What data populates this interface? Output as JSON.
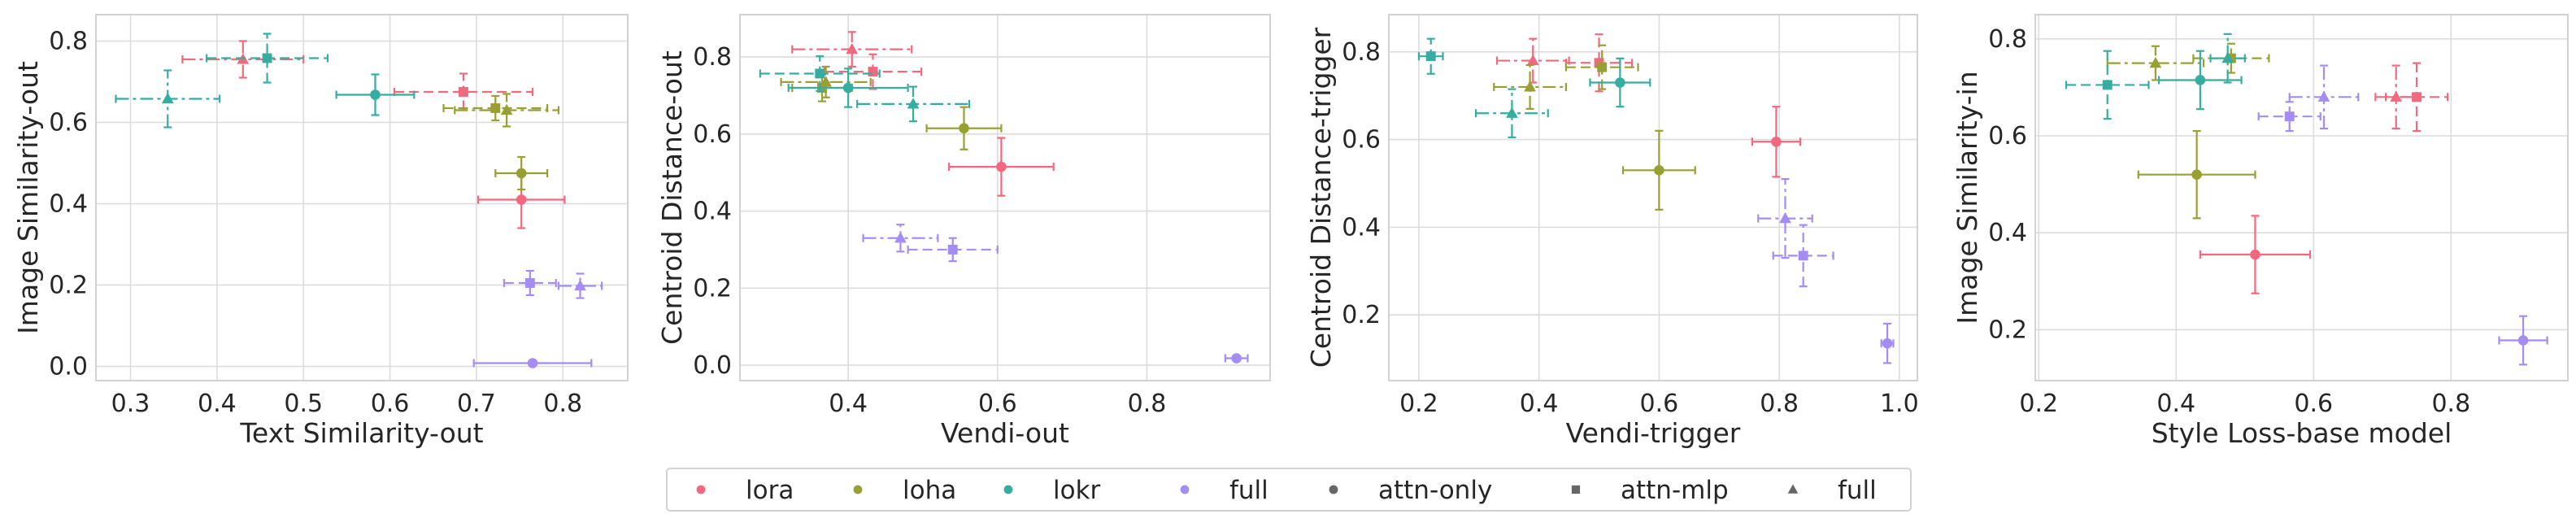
{
  "colors": {
    "lora": "#f0697e",
    "loha": "#98a033",
    "lokr": "#35ada0",
    "full": "#a48cf4",
    "grid": "#dcdcdc",
    "frame": "#d2d2d2",
    "text": "#262626",
    "marker_key": "#666666"
  },
  "legend": {
    "placement": "bottom-center",
    "items": [
      {
        "label": "lora",
        "kind": "color",
        "key": "lora"
      },
      {
        "label": "loha",
        "kind": "color",
        "key": "loha"
      },
      {
        "label": "lokr",
        "kind": "color",
        "key": "lokr"
      },
      {
        "label": "full",
        "kind": "color",
        "key": "full"
      },
      {
        "label": "attn-only",
        "kind": "marker",
        "marker": "circle"
      },
      {
        "label": "attn-mlp",
        "kind": "marker",
        "marker": "square"
      },
      {
        "label": "full",
        "kind": "marker",
        "marker": "triangle"
      }
    ]
  },
  "chart_data": [
    {
      "type": "scatter",
      "xlabel": "Text Similarity-out",
      "ylabel": "Image Similarity-out",
      "xlim": [
        0.26,
        0.875
      ],
      "ylim": [
        -0.035,
        0.865
      ],
      "xticks": [
        0.3,
        0.4,
        0.5,
        0.6,
        0.7,
        0.8
      ],
      "yticks": [
        0.0,
        0.2,
        0.4,
        0.6,
        0.8
      ],
      "xtick_labels": [
        "0.3",
        "0.4",
        "0.5",
        "0.6",
        "0.7",
        "0.8"
      ],
      "ytick_labels": [
        "0.0",
        "0.2",
        "0.4",
        "0.6",
        "0.8"
      ],
      "grid": true,
      "points": [
        {
          "method": "lora",
          "variant": "full",
          "x": 0.43,
          "y": 0.755,
          "xerr": 0.07,
          "yerr": 0.045
        },
        {
          "method": "lora",
          "variant": "attn-mlp",
          "x": 0.685,
          "y": 0.675,
          "xerr": 0.08,
          "yerr": 0.045
        },
        {
          "method": "lora",
          "variant": "attn-only",
          "x": 0.752,
          "y": 0.41,
          "xerr": 0.05,
          "yerr": 0.07
        },
        {
          "method": "loha",
          "variant": "attn-mlp",
          "x": 0.722,
          "y": 0.635,
          "xerr": 0.06,
          "yerr": 0.03
        },
        {
          "method": "loha",
          "variant": "full",
          "x": 0.735,
          "y": 0.63,
          "xerr": 0.06,
          "yerr": 0.04
        },
        {
          "method": "loha",
          "variant": "attn-only",
          "x": 0.752,
          "y": 0.475,
          "xerr": 0.03,
          "yerr": 0.04
        },
        {
          "method": "lokr",
          "variant": "full",
          "x": 0.343,
          "y": 0.658,
          "xerr": 0.06,
          "yerr": 0.07
        },
        {
          "method": "lokr",
          "variant": "attn-mlp",
          "x": 0.458,
          "y": 0.758,
          "xerr": 0.07,
          "yerr": 0.06
        },
        {
          "method": "lokr",
          "variant": "attn-only",
          "x": 0.583,
          "y": 0.668,
          "xerr": 0.045,
          "yerr": 0.05
        },
        {
          "method": "full",
          "variant": "attn-mlp",
          "x": 0.762,
          "y": 0.205,
          "xerr": 0.03,
          "yerr": 0.03
        },
        {
          "method": "full",
          "variant": "full",
          "x": 0.82,
          "y": 0.198,
          "xerr": 0.025,
          "yerr": 0.03
        },
        {
          "method": "full",
          "variant": "attn-only",
          "x": 0.765,
          "y": 0.008,
          "xerr": 0.068,
          "yerr": 0.0
        }
      ]
    },
    {
      "type": "scatter",
      "xlabel": "Vendi-out",
      "ylabel": "Centroid Distance-out",
      "xlim": [
        0.255,
        0.965
      ],
      "ylim": [
        -0.04,
        0.91
      ],
      "xticks": [
        0.4,
        0.6,
        0.8
      ],
      "yticks": [
        0.0,
        0.2,
        0.4,
        0.6,
        0.8
      ],
      "xtick_labels": [
        "0.4",
        "0.6",
        "0.8"
      ],
      "ytick_labels": [
        "0.0",
        "0.2",
        "0.4",
        "0.6",
        "0.8"
      ],
      "grid": true,
      "points": [
        {
          "method": "lora",
          "variant": "full",
          "x": 0.405,
          "y": 0.82,
          "xerr": 0.08,
          "yerr": 0.045
        },
        {
          "method": "lora",
          "variant": "attn-mlp",
          "x": 0.433,
          "y": 0.762,
          "xerr": 0.065,
          "yerr": 0.045
        },
        {
          "method": "lora",
          "variant": "attn-only",
          "x": 0.605,
          "y": 0.515,
          "xerr": 0.07,
          "yerr": 0.075
        },
        {
          "method": "loha",
          "variant": "full",
          "x": 0.37,
          "y": 0.735,
          "xerr": 0.06,
          "yerr": 0.04
        },
        {
          "method": "loha",
          "variant": "attn-only",
          "x": 0.555,
          "y": 0.615,
          "xerr": 0.05,
          "yerr": 0.055
        },
        {
          "method": "loha",
          "variant": "attn-mlp",
          "x": 0.365,
          "y": 0.72,
          "xerr": 0.04,
          "yerr": 0.035
        },
        {
          "method": "lokr",
          "variant": "attn-mlp",
          "x": 0.362,
          "y": 0.757,
          "xerr": 0.08,
          "yerr": 0.045
        },
        {
          "method": "lokr",
          "variant": "attn-only",
          "x": 0.4,
          "y": 0.72,
          "xerr": 0.08,
          "yerr": 0.05
        },
        {
          "method": "lokr",
          "variant": "full",
          "x": 0.487,
          "y": 0.678,
          "xerr": 0.075,
          "yerr": 0.045
        },
        {
          "method": "full",
          "variant": "full",
          "x": 0.47,
          "y": 0.33,
          "xerr": 0.05,
          "yerr": 0.035
        },
        {
          "method": "full",
          "variant": "attn-mlp",
          "x": 0.54,
          "y": 0.3,
          "xerr": 0.06,
          "yerr": 0.03
        },
        {
          "method": "full",
          "variant": "attn-only",
          "x": 0.92,
          "y": 0.018,
          "xerr": 0.015,
          "yerr": 0.0
        }
      ]
    },
    {
      "type": "scatter",
      "xlabel": "Vendi-trigger",
      "ylabel": "Centroid Distance-trigger",
      "xlim": [
        0.15,
        1.03
      ],
      "ylim": [
        0.05,
        0.885
      ],
      "xticks": [
        0.2,
        0.4,
        0.6,
        0.8,
        1.0
      ],
      "yticks": [
        0.2,
        0.4,
        0.6,
        0.8
      ],
      "xtick_labels": [
        "0.2",
        "0.4",
        "0.6",
        "0.8",
        "1.0"
      ],
      "ytick_labels": [
        "0.2",
        "0.4",
        "0.6",
        "0.8"
      ],
      "grid": true,
      "points": [
        {
          "method": "lora",
          "variant": "full",
          "x": 0.39,
          "y": 0.78,
          "xerr": 0.06,
          "yerr": 0.05
        },
        {
          "method": "lora",
          "variant": "attn-mlp",
          "x": 0.5,
          "y": 0.775,
          "xerr": 0.055,
          "yerr": 0.065
        },
        {
          "method": "lora",
          "variant": "attn-only",
          "x": 0.795,
          "y": 0.595,
          "xerr": 0.04,
          "yerr": 0.08
        },
        {
          "method": "loha",
          "variant": "full",
          "x": 0.385,
          "y": 0.72,
          "xerr": 0.06,
          "yerr": 0.05
        },
        {
          "method": "loha",
          "variant": "attn-mlp",
          "x": 0.505,
          "y": 0.765,
          "xerr": 0.06,
          "yerr": 0.05
        },
        {
          "method": "loha",
          "variant": "attn-only",
          "x": 0.6,
          "y": 0.53,
          "xerr": 0.06,
          "yerr": 0.09
        },
        {
          "method": "lokr",
          "variant": "attn-mlp",
          "x": 0.22,
          "y": 0.79,
          "xerr": 0.02,
          "yerr": 0.04
        },
        {
          "method": "lokr",
          "variant": "full",
          "x": 0.355,
          "y": 0.66,
          "xerr": 0.06,
          "yerr": 0.055
        },
        {
          "method": "lokr",
          "variant": "attn-only",
          "x": 0.535,
          "y": 0.73,
          "xerr": 0.05,
          "yerr": 0.055
        },
        {
          "method": "full",
          "variant": "full",
          "x": 0.81,
          "y": 0.42,
          "xerr": 0.045,
          "yerr": 0.09
        },
        {
          "method": "full",
          "variant": "attn-mlp",
          "x": 0.84,
          "y": 0.335,
          "xerr": 0.05,
          "yerr": 0.07
        },
        {
          "method": "full",
          "variant": "attn-only",
          "x": 0.98,
          "y": 0.135,
          "xerr": 0.01,
          "yerr": 0.045
        }
      ]
    },
    {
      "type": "scatter",
      "xlabel": "Style Loss-base model",
      "ylabel": "Image Similarity-in",
      "xlim": [
        0.195,
        0.97
      ],
      "ylim": [
        0.095,
        0.85
      ],
      "xticks": [
        0.2,
        0.4,
        0.6,
        0.8
      ],
      "yticks": [
        0.2,
        0.4,
        0.6,
        0.8
      ],
      "xtick_labels": [
        "0.2",
        "0.4",
        "0.6",
        "0.8"
      ],
      "ytick_labels": [
        "0.2",
        "0.4",
        "0.6",
        "0.8"
      ],
      "grid": true,
      "points": [
        {
          "method": "lora",
          "variant": "full",
          "x": 0.72,
          "y": 0.68,
          "xerr": 0.03,
          "yerr": 0.065
        },
        {
          "method": "lora",
          "variant": "attn-mlp",
          "x": 0.75,
          "y": 0.68,
          "xerr": 0.045,
          "yerr": 0.07
        },
        {
          "method": "lora",
          "variant": "attn-only",
          "x": 0.515,
          "y": 0.355,
          "xerr": 0.08,
          "yerr": 0.08
        },
        {
          "method": "loha",
          "variant": "full",
          "x": 0.37,
          "y": 0.75,
          "xerr": 0.07,
          "yerr": 0.035
        },
        {
          "method": "loha",
          "variant": "attn-mlp",
          "x": 0.48,
          "y": 0.76,
          "xerr": 0.055,
          "yerr": 0.03
        },
        {
          "method": "loha",
          "variant": "attn-only",
          "x": 0.43,
          "y": 0.52,
          "xerr": 0.085,
          "yerr": 0.09
        },
        {
          "method": "lokr",
          "variant": "attn-mlp",
          "x": 0.3,
          "y": 0.705,
          "xerr": 0.06,
          "yerr": 0.07
        },
        {
          "method": "lokr",
          "variant": "attn-only",
          "x": 0.435,
          "y": 0.715,
          "xerr": 0.06,
          "yerr": 0.06
        },
        {
          "method": "lokr",
          "variant": "full",
          "x": 0.475,
          "y": 0.76,
          "xerr": 0.025,
          "yerr": 0.05
        },
        {
          "method": "full",
          "variant": "attn-mlp",
          "x": 0.565,
          "y": 0.64,
          "xerr": 0.045,
          "yerr": 0.03
        },
        {
          "method": "full",
          "variant": "full",
          "x": 0.615,
          "y": 0.68,
          "xerr": 0.05,
          "yerr": 0.065
        },
        {
          "method": "full",
          "variant": "attn-only",
          "x": 0.905,
          "y": 0.178,
          "xerr": 0.035,
          "yerr": 0.05
        }
      ]
    }
  ]
}
